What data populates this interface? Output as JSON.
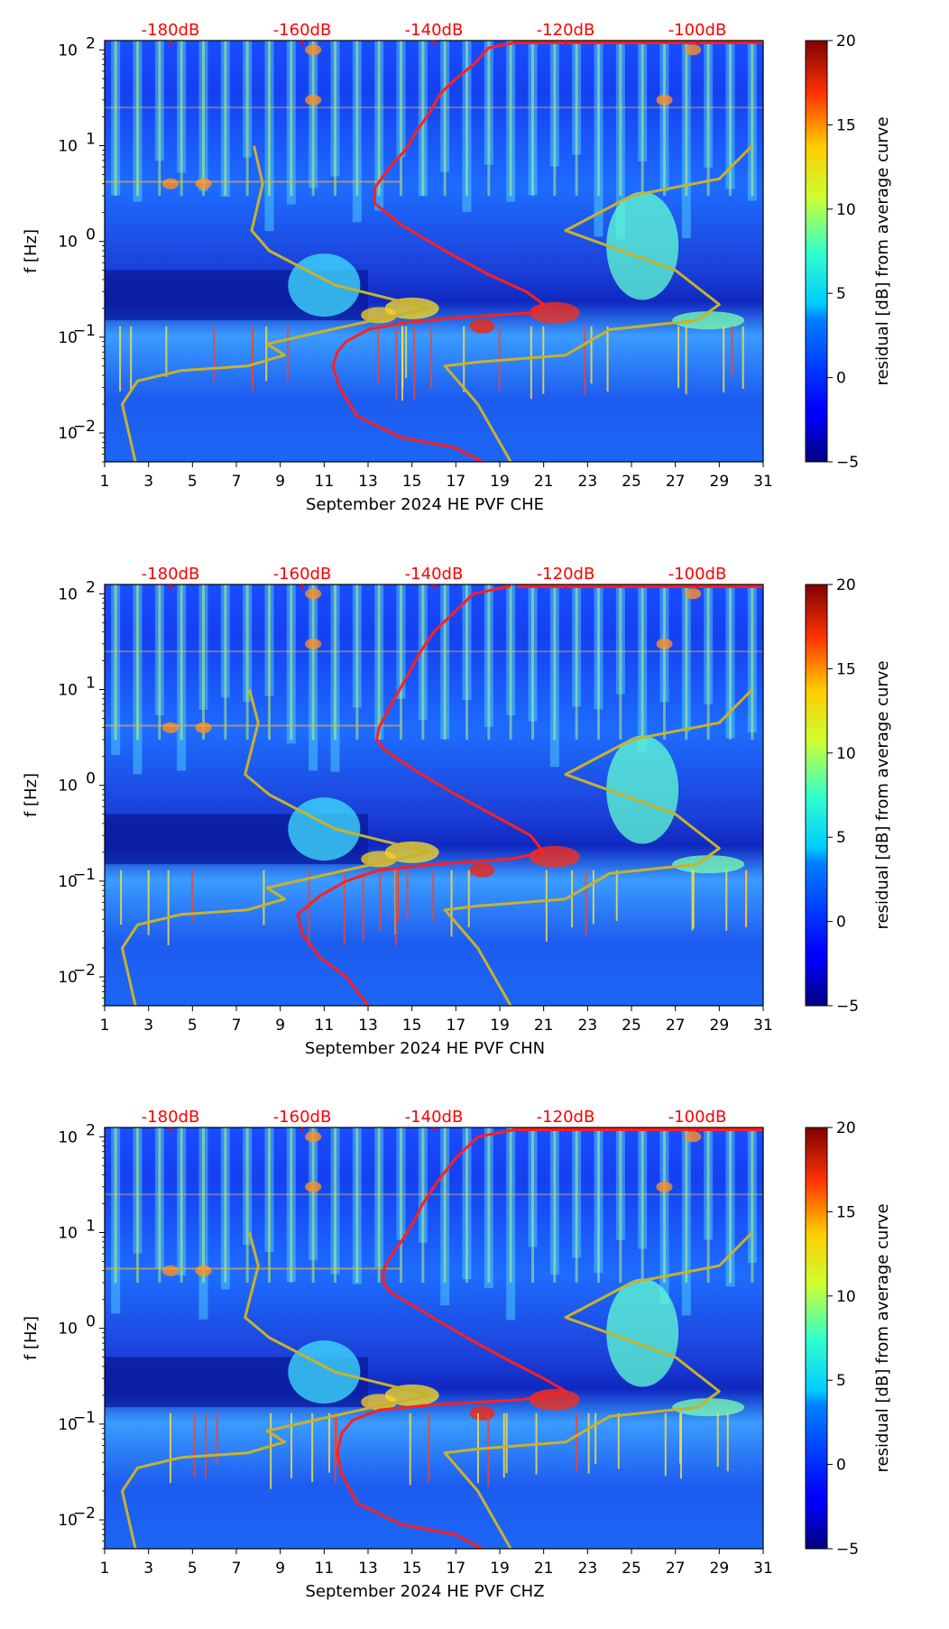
{
  "chart_data": [
    {
      "type": "heatmap",
      "title": "",
      "xlabel": "September 2024 HE PVF  CHE",
      "ylabel": "f [Hz]",
      "x_ticks": [
        "1",
        "3",
        "5",
        "7",
        "9",
        "11",
        "13",
        "15",
        "17",
        "19",
        "21",
        "23",
        "25",
        "27",
        "29",
        "31"
      ],
      "xlim": [
        1,
        31
      ],
      "y_ticks": [
        "10^-2",
        "10^-1",
        "10^0",
        "10^1",
        "10^2"
      ],
      "y_tick_parts": [
        [
          "10",
          "−2"
        ],
        [
          "10",
          "−1"
        ],
        [
          "10",
          "0"
        ],
        [
          "10",
          "1"
        ],
        [
          "10",
          "2"
        ]
      ],
      "ylim": [
        0.005,
        125
      ],
      "yscale": "log",
      "top_axis_labels": [
        "-180dB",
        "-160dB",
        "-140dB",
        "-120dB",
        "-100dB"
      ],
      "colorbar": {
        "label": "residual [dB] from average curve",
        "ticks": [
          "−5",
          "0",
          "5",
          "10",
          "15",
          "20"
        ],
        "range": [
          -5,
          20
        ],
        "colormap": "jet"
      },
      "series": [
        {
          "name": "median PSD (top dB axis)",
          "color": "#ff2020",
          "points": [
            [
              19.8,
              120
            ],
            [
              18.5,
              105
            ],
            [
              17.8,
              70
            ],
            [
              17,
              50
            ],
            [
              16.3,
              35
            ],
            [
              15.8,
              22
            ],
            [
              15.2,
              14
            ],
            [
              14.7,
              9
            ],
            [
              14,
              6
            ],
            [
              13.6,
              4.5
            ],
            [
              13.3,
              3.6
            ],
            [
              13.3,
              2.5
            ],
            [
              14.5,
              1.5
            ],
            [
              16.5,
              0.8
            ],
            [
              18.5,
              0.45
            ],
            [
              20.2,
              0.3
            ],
            [
              21,
              0.22
            ],
            [
              20.5,
              0.18
            ],
            [
              17,
              0.16
            ],
            [
              14.5,
              0.14
            ],
            [
              13,
              0.12
            ],
            [
              12,
              0.09
            ],
            [
              11.6,
              0.07
            ],
            [
              11.4,
              0.05
            ],
            [
              11.7,
              0.03
            ],
            [
              12.5,
              0.015
            ],
            [
              14.5,
              0.009
            ],
            [
              17,
              0.007
            ],
            [
              18.2,
              0.005
            ]
          ]
        },
        {
          "name": "NLNM / NHNM reference model",
          "color": "#c8b22a",
          "points": [
            [
              7.8,
              10
            ],
            [
              8.2,
              4
            ],
            [
              7.7,
              1.3
            ],
            [
              8.5,
              0.8
            ],
            [
              11.5,
              0.35
            ],
            [
              15.8,
              0.2
            ],
            [
              12,
              0.13
            ],
            [
              8.4,
              0.085
            ],
            [
              9.2,
              0.065
            ],
            [
              7.5,
              0.05
            ],
            [
              4.5,
              0.045
            ],
            [
              2.5,
              0.035
            ],
            [
              1.8,
              0.02
            ],
            [
              2.1,
              0.01
            ],
            [
              2.4,
              0.005
            ]
          ]
        },
        {
          "name": "NHNM high model",
          "color": "#c8b22a",
          "points": [
            [
              30.5,
              10
            ],
            [
              29,
              4.5
            ],
            [
              25,
              3
            ],
            [
              22,
              1.3
            ],
            [
              27,
              0.5
            ],
            [
              29,
              0.22
            ],
            [
              28,
              0.15
            ],
            [
              24,
              0.12
            ],
            [
              22,
              0.065
            ],
            [
              18,
              0.055
            ],
            [
              16.5,
              0.05
            ],
            [
              18,
              0.02
            ],
            [
              19.5,
              0.005
            ]
          ]
        }
      ]
    },
    {
      "type": "heatmap",
      "title": "",
      "xlabel": "September 2024 HE PVF  CHN",
      "ylabel": "f [Hz]",
      "x_ticks": [
        "1",
        "3",
        "5",
        "7",
        "9",
        "11",
        "13",
        "15",
        "17",
        "19",
        "21",
        "23",
        "25",
        "27",
        "29",
        "31"
      ],
      "xlim": [
        1,
        31
      ],
      "y_ticks": [
        "10^-2",
        "10^-1",
        "10^0",
        "10^1",
        "10^2"
      ],
      "y_tick_parts": [
        [
          "10",
          "−2"
        ],
        [
          "10",
          "−1"
        ],
        [
          "10",
          "0"
        ],
        [
          "10",
          "1"
        ],
        [
          "10",
          "2"
        ]
      ],
      "ylim": [
        0.005,
        125
      ],
      "yscale": "log",
      "top_axis_labels": [
        "-180dB",
        "-160dB",
        "-140dB",
        "-120dB",
        "-100dB"
      ],
      "colorbar": {
        "label": "residual [dB] from average curve",
        "ticks": [
          "−5",
          "0",
          "5",
          "10",
          "15",
          "20"
        ],
        "range": [
          -5,
          20
        ],
        "colormap": "jet"
      },
      "series": [
        {
          "name": "median PSD (top dB axis)",
          "color": "#ff2020",
          "points": [
            [
              19.5,
              120
            ],
            [
              17.8,
              100
            ],
            [
              16.8,
              60
            ],
            [
              16,
              40
            ],
            [
              15.4,
              25
            ],
            [
              14.8,
              14
            ],
            [
              14.2,
              8
            ],
            [
              13.8,
              5.5
            ],
            [
              13.5,
              4
            ],
            [
              13.4,
              3
            ],
            [
              13.7,
              2.4
            ],
            [
              15,
              1.5
            ],
            [
              17,
              0.8
            ],
            [
              19,
              0.45
            ],
            [
              20.4,
              0.3
            ],
            [
              21,
              0.2
            ],
            [
              19.5,
              0.17
            ],
            [
              16,
              0.15
            ],
            [
              13.5,
              0.13
            ],
            [
              12,
              0.1
            ],
            [
              10.8,
              0.07
            ],
            [
              9.8,
              0.045
            ],
            [
              10,
              0.028
            ],
            [
              10.8,
              0.016
            ],
            [
              12,
              0.01
            ],
            [
              13,
              0.005
            ]
          ]
        },
        {
          "name": "NLNM / NHNM reference model",
          "color": "#c8b22a",
          "points": [
            [
              7.6,
              10
            ],
            [
              8,
              4.5
            ],
            [
              7.4,
              1.3
            ],
            [
              8.5,
              0.8
            ],
            [
              11.5,
              0.35
            ],
            [
              15.8,
              0.2
            ],
            [
              12,
              0.13
            ],
            [
              8.4,
              0.085
            ],
            [
              9.2,
              0.065
            ],
            [
              7.5,
              0.05
            ],
            [
              4.5,
              0.045
            ],
            [
              2.5,
              0.035
            ],
            [
              1.8,
              0.02
            ],
            [
              2.1,
              0.01
            ],
            [
              2.4,
              0.005
            ]
          ]
        },
        {
          "name": "NHNM high model",
          "color": "#c8b22a",
          "points": [
            [
              30.5,
              10
            ],
            [
              29,
              4.5
            ],
            [
              25,
              3
            ],
            [
              22,
              1.3
            ],
            [
              27,
              0.5
            ],
            [
              29,
              0.22
            ],
            [
              28,
              0.15
            ],
            [
              24,
              0.12
            ],
            [
              22,
              0.065
            ],
            [
              18,
              0.055
            ],
            [
              16.5,
              0.05
            ],
            [
              18,
              0.02
            ],
            [
              19.5,
              0.005
            ]
          ]
        }
      ]
    },
    {
      "type": "heatmap",
      "title": "",
      "xlabel": "September 2024 HE PVF  CHZ",
      "ylabel": "f [Hz]",
      "x_ticks": [
        "1",
        "3",
        "5",
        "7",
        "9",
        "11",
        "13",
        "15",
        "17",
        "19",
        "21",
        "23",
        "25",
        "27",
        "29",
        "31"
      ],
      "xlim": [
        1,
        31
      ],
      "y_ticks": [
        "10^-2",
        "10^-1",
        "10^0",
        "10^1",
        "10^2"
      ],
      "y_tick_parts": [
        [
          "10",
          "−2"
        ],
        [
          "10",
          "−1"
        ],
        [
          "10",
          "0"
        ],
        [
          "10",
          "1"
        ],
        [
          "10",
          "2"
        ]
      ],
      "ylim": [
        0.005,
        125
      ],
      "yscale": "log",
      "top_axis_labels": [
        "-180dB",
        "-160dB",
        "-140dB",
        "-120dB",
        "-100dB"
      ],
      "colorbar": {
        "label": "residual [dB] from average curve",
        "ticks": [
          "−5",
          "0",
          "5",
          "10",
          "15",
          "20"
        ],
        "range": [
          -5,
          20
        ],
        "colormap": "jet"
      },
      "series": [
        {
          "name": "median PSD (top dB axis)",
          "color": "#ff2020",
          "points": [
            [
              19.8,
              120
            ],
            [
              18,
              100
            ],
            [
              17,
              60
            ],
            [
              16.2,
              35
            ],
            [
              15.5,
              20
            ],
            [
              15,
              12
            ],
            [
              14.5,
              8
            ],
            [
              14,
              5.5
            ],
            [
              13.7,
              4
            ],
            [
              13.7,
              3
            ],
            [
              14,
              2.4
            ],
            [
              15.5,
              1.5
            ],
            [
              17.5,
              0.8
            ],
            [
              19.5,
              0.45
            ],
            [
              21,
              0.3
            ],
            [
              22,
              0.22
            ],
            [
              20,
              0.18
            ],
            [
              16,
              0.16
            ],
            [
              13.5,
              0.14
            ],
            [
              12.3,
              0.11
            ],
            [
              11.8,
              0.08
            ],
            [
              11.6,
              0.05
            ],
            [
              11.8,
              0.03
            ],
            [
              12.5,
              0.015
            ],
            [
              14.5,
              0.009
            ],
            [
              17,
              0.007
            ],
            [
              18.2,
              0.005
            ]
          ]
        },
        {
          "name": "NLNM / NHNM reference model",
          "color": "#c8b22a",
          "points": [
            [
              7.6,
              10
            ],
            [
              8,
              4.5
            ],
            [
              7.4,
              1.3
            ],
            [
              8.5,
              0.8
            ],
            [
              11.5,
              0.35
            ],
            [
              15.8,
              0.2
            ],
            [
              12,
              0.13
            ],
            [
              8.4,
              0.085
            ],
            [
              9.2,
              0.065
            ],
            [
              7.5,
              0.05
            ],
            [
              4.5,
              0.045
            ],
            [
              2.5,
              0.035
            ],
            [
              1.8,
              0.02
            ],
            [
              2.1,
              0.01
            ],
            [
              2.4,
              0.005
            ]
          ]
        },
        {
          "name": "NHNM high model",
          "color": "#c8b22a",
          "points": [
            [
              30.5,
              10
            ],
            [
              29,
              4.5
            ],
            [
              25,
              3
            ],
            [
              22,
              1.3
            ],
            [
              27,
              0.5
            ],
            [
              29,
              0.22
            ],
            [
              28,
              0.15
            ],
            [
              24,
              0.12
            ],
            [
              22,
              0.065
            ],
            [
              18,
              0.055
            ],
            [
              16.5,
              0.05
            ],
            [
              18,
              0.02
            ],
            [
              19.5,
              0.005
            ]
          ]
        }
      ]
    }
  ]
}
